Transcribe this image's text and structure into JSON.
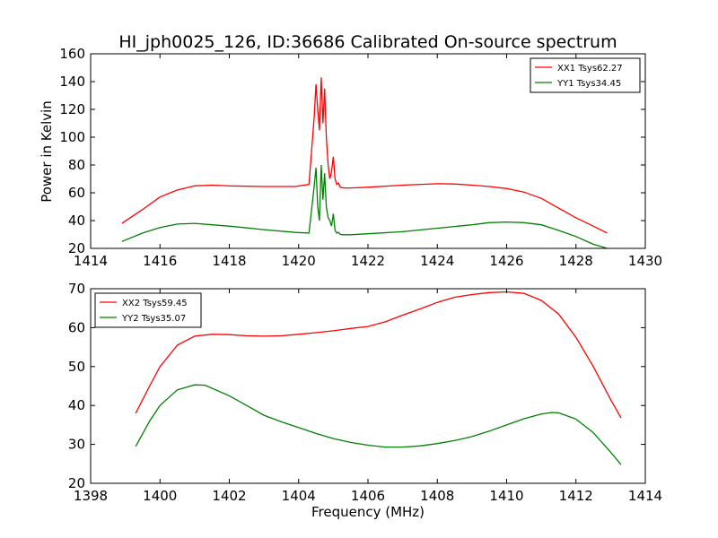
{
  "window": {
    "title": "HI_jph0025_126, ID:36686 Calibrated On-source spectrum"
  },
  "colors": {
    "xx": "#ff0000",
    "yy": "#008000",
    "axes": "#000000",
    "background": "#ffffff"
  },
  "chart_data": [
    {
      "type": "line",
      "title": "HI_jph0025_126, ID:36686 Calibrated On-source spectrum",
      "xlabel": "",
      "ylabel": "Power in Kelvin",
      "xlim": [
        1414,
        1430
      ],
      "ylim": [
        20,
        160
      ],
      "xticks": [
        "1414",
        "1416",
        "1418",
        "1420",
        "1422",
        "1424",
        "1426",
        "1428",
        "1430"
      ],
      "yticks": [
        "20",
        "40",
        "60",
        "80",
        "100",
        "120",
        "140",
        "160"
      ],
      "grid": false,
      "legend_position": "top-right",
      "series": [
        {
          "name": "XX1 Tsys62.27",
          "color": "#ff0000",
          "x": [
            1414.9,
            1415.5,
            1416.0,
            1416.5,
            1417.0,
            1417.5,
            1418.0,
            1419.0,
            1419.9,
            1420.3,
            1420.45,
            1420.5,
            1420.55,
            1420.6,
            1420.65,
            1420.7,
            1420.75,
            1420.8,
            1420.85,
            1420.9,
            1420.95,
            1421.0,
            1421.05,
            1421.1,
            1421.15,
            1421.2,
            1421.3,
            1421.5,
            1422.0,
            1423.0,
            1424.0,
            1424.5,
            1425.0,
            1425.5,
            1426.0,
            1426.5,
            1427.0,
            1427.5,
            1428.0,
            1428.5,
            1428.9
          ],
          "values": [
            38,
            48,
            57,
            62,
            65,
            65.5,
            65,
            64.5,
            64.5,
            66,
            115,
            138,
            120,
            105,
            143,
            110,
            135,
            100,
            80,
            70,
            75,
            86,
            70,
            66,
            67,
            64,
            63.5,
            63.5,
            64,
            65.5,
            66.5,
            66.3,
            65.5,
            64.5,
            63,
            60.5,
            56,
            49,
            42,
            36,
            31
          ]
        },
        {
          "name": "YY1 Tsys34.45",
          "color": "#008000",
          "x": [
            1414.9,
            1415.5,
            1416.0,
            1416.5,
            1417.0,
            1417.5,
            1418.0,
            1419.0,
            1419.9,
            1420.3,
            1420.45,
            1420.5,
            1420.55,
            1420.6,
            1420.65,
            1420.7,
            1420.75,
            1420.8,
            1420.85,
            1420.9,
            1420.95,
            1421.0,
            1421.05,
            1421.1,
            1421.15,
            1421.2,
            1421.3,
            1421.5,
            1422.0,
            1423.0,
            1424.0,
            1425.0,
            1425.5,
            1426.0,
            1426.5,
            1427.0,
            1427.5,
            1428.0,
            1428.5,
            1428.9
          ],
          "values": [
            25,
            31,
            35,
            37.5,
            38,
            37,
            36,
            33.5,
            31.5,
            31,
            65,
            78,
            50,
            40,
            80,
            55,
            74,
            50,
            42,
            40,
            36,
            45,
            33,
            31,
            31.5,
            30,
            29.8,
            29.8,
            30.5,
            32,
            34.5,
            37,
            38.5,
            39,
            38.5,
            37,
            33,
            28.5,
            23,
            20
          ]
        }
      ]
    },
    {
      "type": "line",
      "title": "",
      "xlabel": "Frequency (MHz)",
      "ylabel": "",
      "xlim": [
        1398,
        1414
      ],
      "ylim": [
        20,
        70
      ],
      "xticks": [
        "1398",
        "1400",
        "1402",
        "1404",
        "1406",
        "1408",
        "1410",
        "1412",
        "1414"
      ],
      "yticks": [
        "20",
        "30",
        "40",
        "50",
        "60",
        "70"
      ],
      "grid": false,
      "legend_position": "top-left",
      "series": [
        {
          "name": "XX2 Tsys59.45",
          "color": "#ff0000",
          "x": [
            1399.3,
            1399.7,
            1400.0,
            1400.5,
            1401.0,
            1401.5,
            1402.0,
            1402.5,
            1403.0,
            1403.5,
            1404.0,
            1404.5,
            1405.0,
            1405.5,
            1406.0,
            1406.5,
            1407.0,
            1407.5,
            1408.0,
            1408.5,
            1409.0,
            1409.5,
            1410.0,
            1410.5,
            1411.0,
            1411.5,
            1412.0,
            1412.5,
            1413.0,
            1413.3
          ],
          "values": [
            38,
            45,
            50,
            55.5,
            57.8,
            58.3,
            58.2,
            57.9,
            57.8,
            57.9,
            58.3,
            58.7,
            59.2,
            59.8,
            60.3,
            61.5,
            63.2,
            64.8,
            66.5,
            67.8,
            68.5,
            69,
            69.2,
            68.8,
            67,
            63.5,
            57.5,
            50,
            41.5,
            36.8
          ]
        },
        {
          "name": "YY2 Tsys35.07",
          "color": "#008000",
          "x": [
            1399.3,
            1399.7,
            1400.0,
            1400.5,
            1401.0,
            1401.3,
            1402.0,
            1402.5,
            1403.0,
            1403.5,
            1404.0,
            1404.5,
            1405.0,
            1405.5,
            1406.0,
            1406.5,
            1407.0,
            1407.5,
            1408.0,
            1408.5,
            1409.0,
            1409.5,
            1410.0,
            1410.5,
            1411.0,
            1411.3,
            1411.5,
            1412.0,
            1412.5,
            1413.0,
            1413.3
          ],
          "values": [
            29.5,
            36,
            40,
            44,
            45.3,
            45.2,
            42.5,
            40,
            37.5,
            35.8,
            34.3,
            32.8,
            31.5,
            30.5,
            29.8,
            29.3,
            29.3,
            29.6,
            30.2,
            31,
            32,
            33.4,
            35,
            36.6,
            37.8,
            38.2,
            38.1,
            36.5,
            33,
            28,
            24.8
          ]
        }
      ]
    }
  ]
}
